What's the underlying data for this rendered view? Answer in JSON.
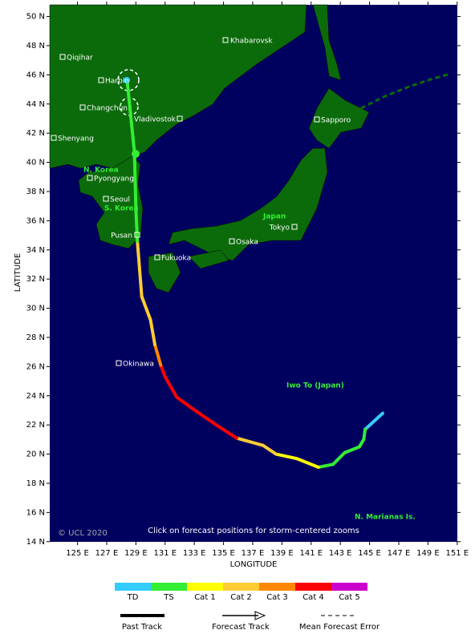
{
  "map": {
    "lat_axis": {
      "label": "LATITUDE",
      "ticks": [
        {
          "value": 50,
          "label": "50 N"
        },
        {
          "value": 48,
          "label": "48 N"
        },
        {
          "value": 46,
          "label": "46 N"
        },
        {
          "value": 44,
          "label": "44 N"
        },
        {
          "value": 42,
          "label": "42 N"
        },
        {
          "value": 40,
          "label": "40 N"
        },
        {
          "value": 38,
          "label": "38 N"
        },
        {
          "value": 36,
          "label": "36 N"
        },
        {
          "value": 34,
          "label": "34 N"
        },
        {
          "value": 32,
          "label": "32 N"
        },
        {
          "value": 30,
          "label": "30 N"
        },
        {
          "value": 28,
          "label": "28 N"
        },
        {
          "value": 26,
          "label": "26 N"
        },
        {
          "value": 24,
          "label": "24 N"
        },
        {
          "value": 22,
          "label": "22 N"
        },
        {
          "value": 20,
          "label": "20 N"
        },
        {
          "value": 18,
          "label": "18 N"
        },
        {
          "value": 16,
          "label": "16 N"
        },
        {
          "value": 14,
          "label": "14 N"
        }
      ]
    },
    "lon_axis": {
      "label": "LONGITUDE",
      "ticks": [
        {
          "value": 125,
          "label": "125 E"
        },
        {
          "value": 127,
          "label": "127 E"
        },
        {
          "value": 129,
          "label": "129 E"
        },
        {
          "value": 131,
          "label": "131 E"
        },
        {
          "value": 133,
          "label": "133 E"
        },
        {
          "value": 135,
          "label": "135 E"
        },
        {
          "value": 137,
          "label": "137 E"
        },
        {
          "value": 139,
          "label": "139 E"
        },
        {
          "value": 141,
          "label": "141 E"
        },
        {
          "value": 143,
          "label": "143 E"
        },
        {
          "value": 145,
          "label": "145 E"
        },
        {
          "value": 147,
          "label": "147 E"
        },
        {
          "value": 149,
          "label": "149 E"
        },
        {
          "value": 151,
          "label": "151 E"
        }
      ]
    },
    "cities": [
      "Khabarovsk",
      "Qiqihar",
      "Harbin",
      "Changchun",
      "Vladivostok",
      "Shenyang",
      "Sapporo",
      "Pyongyang",
      "Seoul",
      "Pusan",
      "Tokyo",
      "Osaka",
      "Fukuoka",
      "Okinawa"
    ],
    "regions": [
      "N. Korea",
      "S. Korea",
      "Japan",
      "Iwo To (Japan)",
      "N. Marianas Is."
    ],
    "copyright": "© UCL 2020",
    "instruction": "Click on forecast positions for storm-centered zooms",
    "track": {
      "points": [
        {
          "lon": 145.9,
          "lat": 22.8,
          "category": 0
        },
        {
          "lon": 144.7,
          "lat": 21.7,
          "category": 1
        },
        {
          "lon": 144.6,
          "lat": 21.0,
          "category": 1
        },
        {
          "lon": 144.3,
          "lat": 20.5,
          "category": 1
        },
        {
          "lon": 143.3,
          "lat": 20.1,
          "category": 1
        },
        {
          "lon": 142.5,
          "lat": 19.3,
          "category": 1
        },
        {
          "lon": 141.5,
          "lat": 19.1,
          "category": 2
        },
        {
          "lon": 140.0,
          "lat": 19.7,
          "category": 2
        },
        {
          "lon": 138.6,
          "lat": 20.0,
          "category": 3
        },
        {
          "lon": 137.7,
          "lat": 20.6,
          "category": 3
        },
        {
          "lon": 135.9,
          "lat": 21.1,
          "category": 5
        },
        {
          "lon": 134.5,
          "lat": 22.0,
          "category": 5
        },
        {
          "lon": 132.9,
          "lat": 23.1,
          "category": 5
        },
        {
          "lon": 131.8,
          "lat": 23.9,
          "category": 5
        },
        {
          "lon": 131.0,
          "lat": 25.3,
          "category": 5
        },
        {
          "lon": 130.7,
          "lat": 26.1,
          "category": 4
        },
        {
          "lon": 130.3,
          "lat": 27.5,
          "category": 3
        },
        {
          "lon": 130.0,
          "lat": 29.2,
          "category": 3
        },
        {
          "lon": 129.4,
          "lat": 30.8,
          "category": 3
        },
        {
          "lon": 129.1,
          "lat": 34.6,
          "category": 1
        },
        {
          "lon": 129.0,
          "lat": 36.8,
          "category": 1
        },
        {
          "lon": 128.9,
          "lat": 40.7,
          "category": 1
        },
        {
          "lon": 128.4,
          "lat": 45.6,
          "category": 1
        }
      ]
    },
    "legend": {
      "categories": [
        {
          "name": "TD",
          "color": "#33ccff"
        },
        {
          "name": "TS",
          "color": "#33ee33"
        },
        {
          "name": "Cat 1",
          "color": "#ffff00"
        },
        {
          "name": "Cat 2",
          "color": "#ffcc33"
        },
        {
          "name": "Cat 3",
          "color": "#ff8800"
        },
        {
          "name": "Cat 4",
          "color": "#ff0000"
        },
        {
          "name": "Cat 5",
          "color": "#cc00cc"
        }
      ],
      "lines": [
        "Past Track",
        "Forecast Track",
        "Mean Forecast Error"
      ]
    }
  }
}
